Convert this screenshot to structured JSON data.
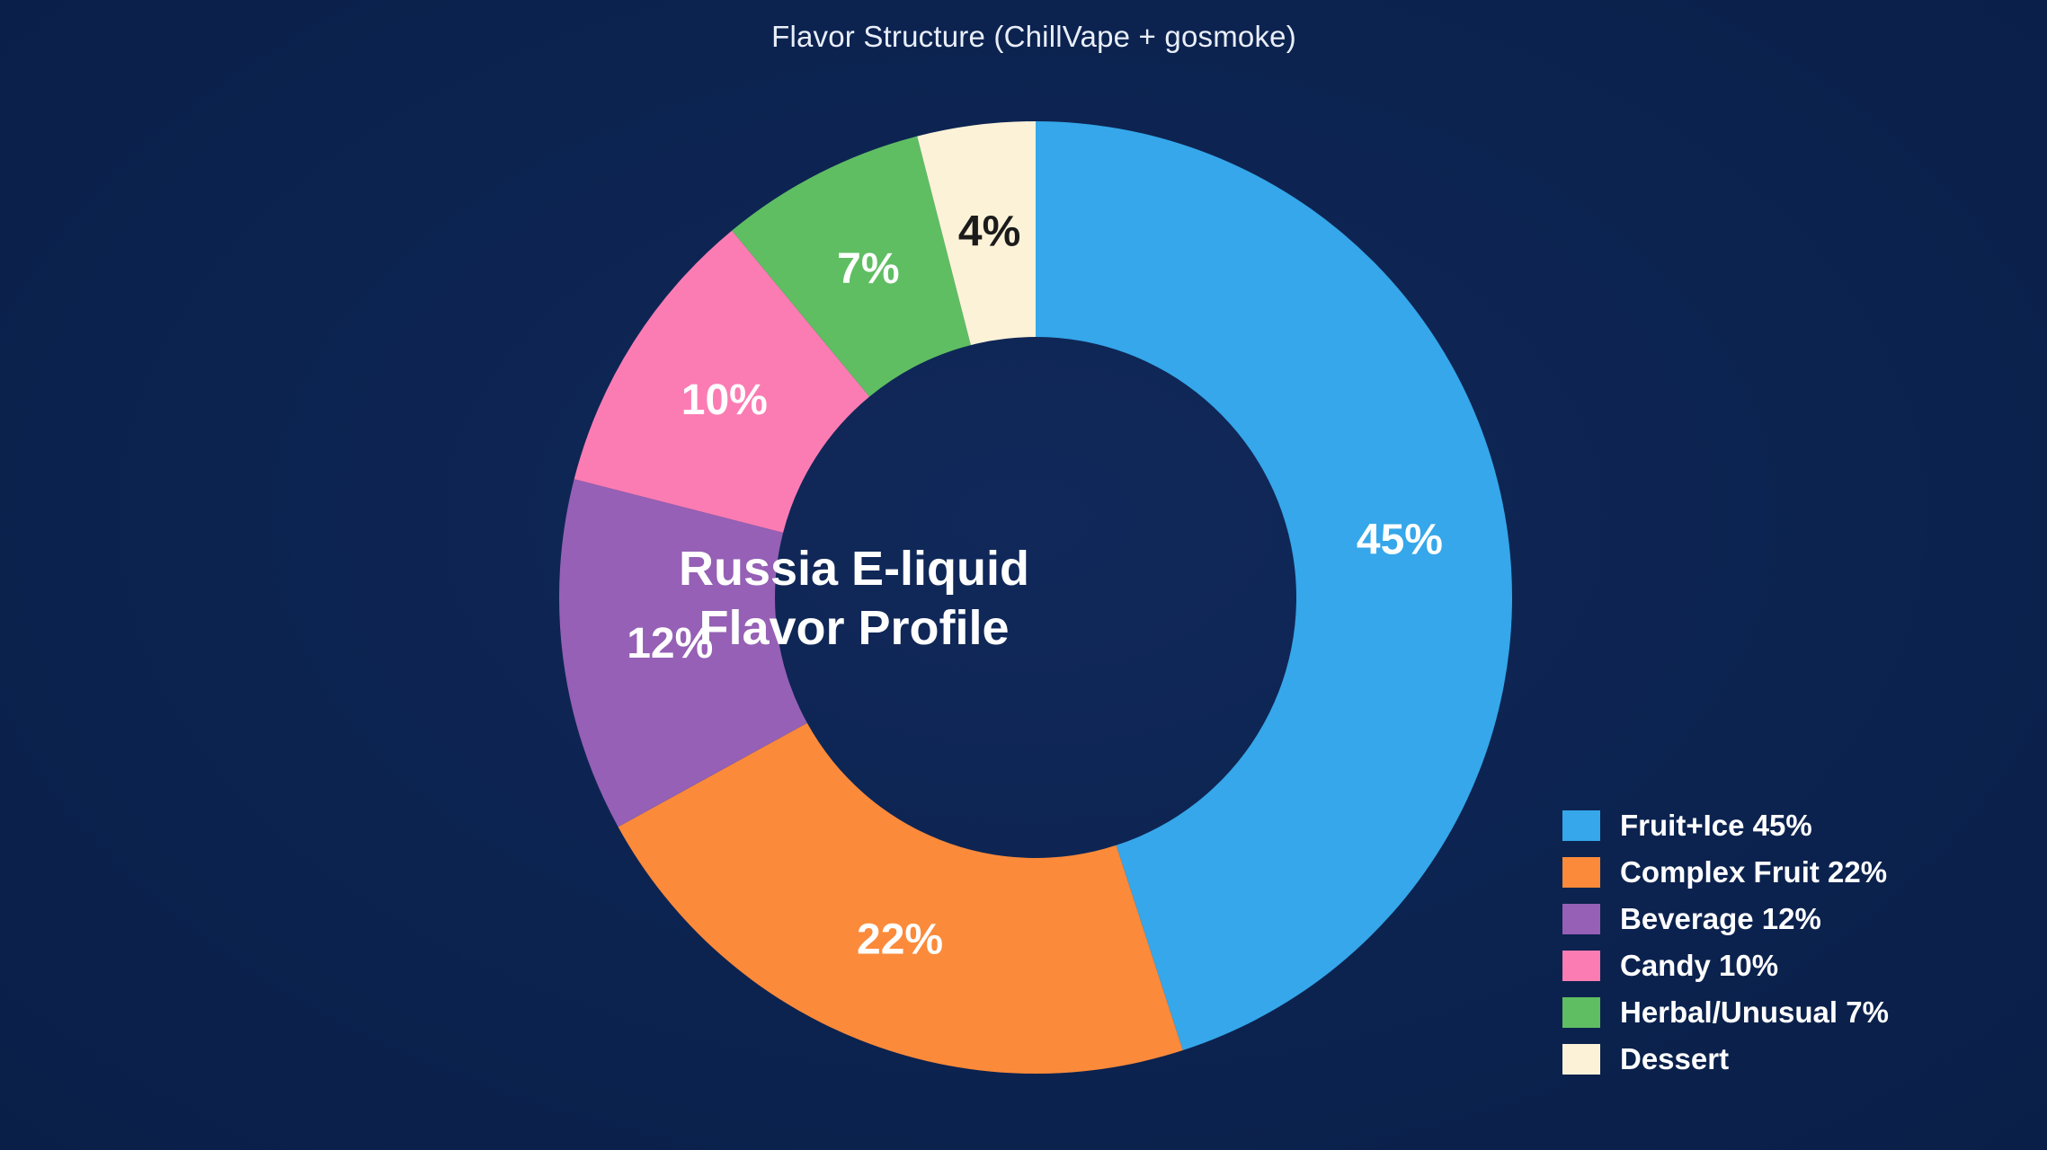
{
  "chart_data": {
    "type": "pie",
    "title": "Flavor Structure (ChillVape + gosmoke)",
    "center_label": [
      "Russia E-liquid",
      "Flavor Profile"
    ],
    "categories": [
      "Fruit+Ice",
      "Complex Fruit",
      "Beverage",
      "Candy",
      "Herbal/Unusual",
      "Dessert"
    ],
    "values": [
      45,
      22,
      12,
      10,
      7,
      4
    ],
    "slice_labels": [
      "45%",
      "22%",
      "12%",
      "10%",
      "7%",
      "4%"
    ],
    "colors": [
      "#35a7ea",
      "#fb8a3a",
      "#9560b5",
      "#fb7cb3",
      "#5fbe62",
      "#fcf2d8"
    ],
    "label_colors": [
      "#ffffff",
      "#ffffff",
      "#ffffff",
      "#ffffff",
      "#ffffff",
      "#1b1b1b"
    ],
    "legend": {
      "placement": "bottom-right",
      "entries": [
        "Fruit+Ice 45%",
        "Complex Fruit 22%",
        "Beverage 12%",
        "Candy 10%",
        "Herbal/Unusual 7%",
        "Dessert"
      ]
    },
    "donut": true,
    "start_direction": "top",
    "direction": "clockwise"
  },
  "background_color": "#0d2550"
}
